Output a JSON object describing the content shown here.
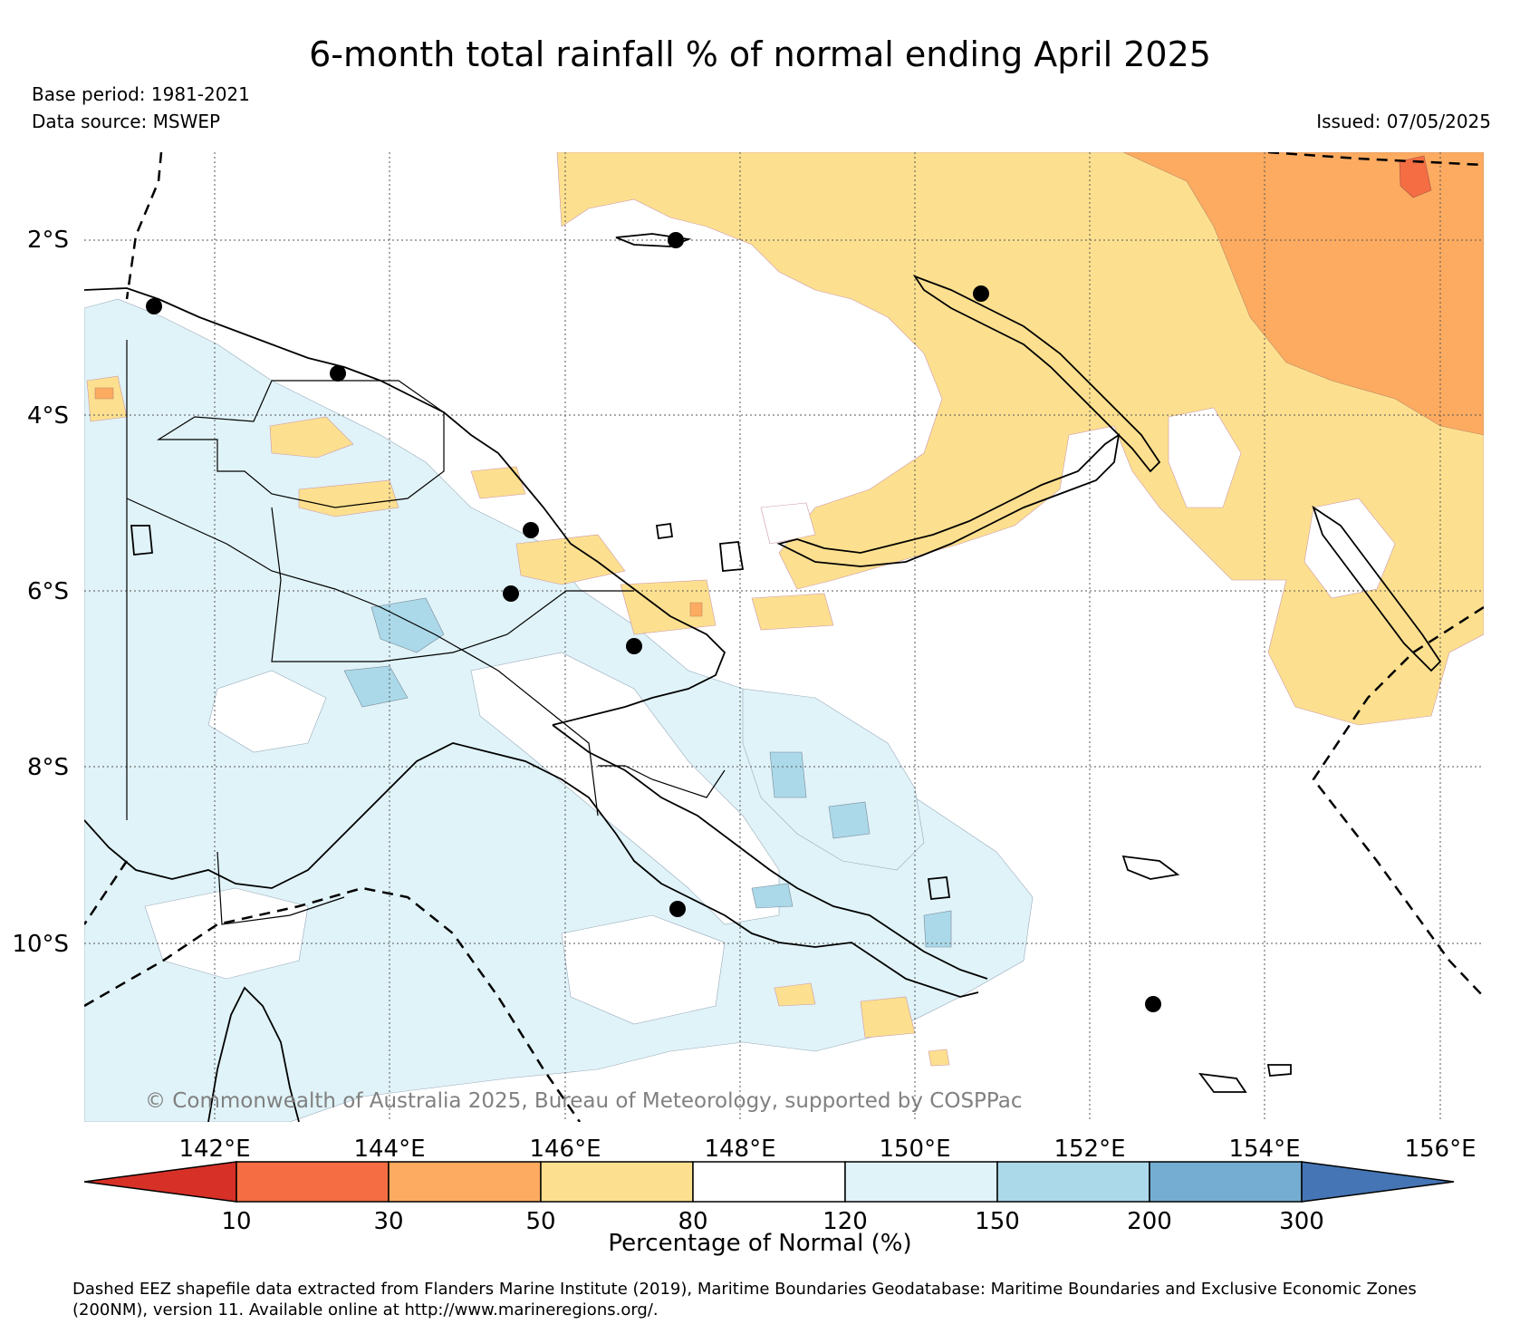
{
  "header": {
    "title": "6-month total rainfall % of normal ending April 2025",
    "base_period": "Base period: 1981-2021",
    "data_source": "Data source: MSWEP",
    "issued": "Issued: 07/05/2025"
  },
  "map": {
    "lat_labels": [
      "2°S",
      "4°S",
      "6°S",
      "8°S",
      "10°S"
    ],
    "lon_labels": [
      "142°E",
      "144°E",
      "146°E",
      "148°E",
      "150°E",
      "152°E",
      "154°E",
      "156°E"
    ],
    "copyright": "© Commonwealth of Australia 2025, Bureau of Meteorology, supported by COSPPac",
    "colors": {
      "ocean_background": "#ffffff",
      "below_normal_50_80": "#fde08f",
      "below_normal_30_50": "#fcab61",
      "below_normal_10_30": "#f46d43",
      "above_normal_120_150": "#e0f3f8",
      "above_normal_150_200": "#abd9e9"
    }
  },
  "legend": {
    "title": "Percentage of Normal (%)",
    "ticks": [
      "10",
      "30",
      "50",
      "80",
      "120",
      "150",
      "200",
      "300"
    ],
    "colors": [
      "#d73027",
      "#f46d43",
      "#fcab61",
      "#fde08f",
      "#ffffff",
      "#e0f3f8",
      "#abd9e9",
      "#74add1",
      "#4575b4"
    ]
  },
  "footnote": {
    "line1": "Dashed EEZ shapefile data extracted from Flanders Marine Institute (2019), Maritime Boundaries Geodatabase: Maritime Boundaries and Exclusive Economic Zones",
    "line2": "(200NM), version 11. Available online at http://www.marineregions.org/."
  }
}
